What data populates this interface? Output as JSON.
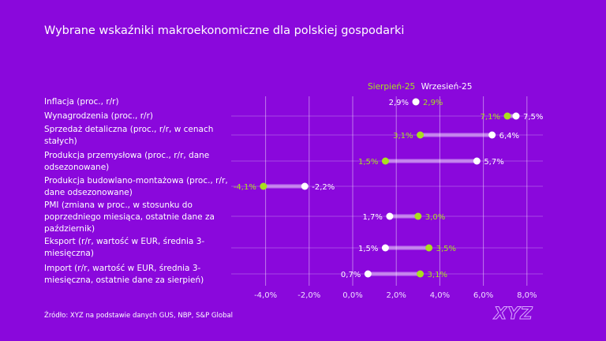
{
  "title": "Wybrane wskaźniki makroekonomiczne dla polskiej gospodarki",
  "source": "Źródło: XYZ na podstawie danych GUS, NBP, S&P Global",
  "logo": "XYZ",
  "colors": {
    "background": "#8a08dc",
    "series_aug": "#a8e01e",
    "series_sep": "#ffffff"
  },
  "chart_data": {
    "type": "dumbbell",
    "title": "Wybrane wskaźniki makroekonomiczne dla polskiej gospodarki",
    "xlim": [
      -4.5,
      8.5
    ],
    "xticks": [
      "-4,0%",
      "-2,0%",
      "0,0%",
      "2,0%",
      "4,0%",
      "6,0%",
      "8,0%"
    ],
    "xtick_values": [
      -4,
      -2,
      0,
      2,
      4,
      6,
      8
    ],
    "grid": true,
    "legend_position": "top",
    "categories": [
      "Inflacja (proc., r/r)",
      "Wynagrodzenia (proc., r/r)",
      "Sprzedaż detaliczna (proc., r/r, w cenach stałych)",
      "Produkcja przemysłowa (proc., r/r, dane odsezonowane)",
      "Produkcja budowlano-montażowa (proc., r/r, dane odsezonowane)",
      "PMI (zmiana w proc., w stosunku do poprzedniego miesiąca, ostatnie dane za październik)",
      "Eksport (r/r, wartość w EUR, średnia 3-miesięczna)",
      "Import (r/r, wartość w EUR, średnia 3-miesięczna, ostatnie dane za sierpień)"
    ],
    "series": [
      {
        "name": "Sierpień-25",
        "color": "#a8e01e",
        "values": [
          2.9,
          7.1,
          3.1,
          1.5,
          -4.1,
          3.0,
          3.5,
          3.1
        ],
        "labels": [
          "2,9%",
          "7,1%",
          "3,1%",
          "1,5%",
          "-4,1%",
          "3,0%",
          "3,5%",
          "3,1%"
        ]
      },
      {
        "name": "Wrzesień-25",
        "color": "#ffffff",
        "values": [
          2.9,
          7.5,
          6.4,
          5.7,
          -2.2,
          1.7,
          1.5,
          0.7
        ],
        "labels": [
          "2,9%",
          "7,5%",
          "6,4%",
          "5,7%",
          "-2,2%",
          "1,7%",
          "1,5%",
          "0,7%"
        ]
      }
    ]
  }
}
